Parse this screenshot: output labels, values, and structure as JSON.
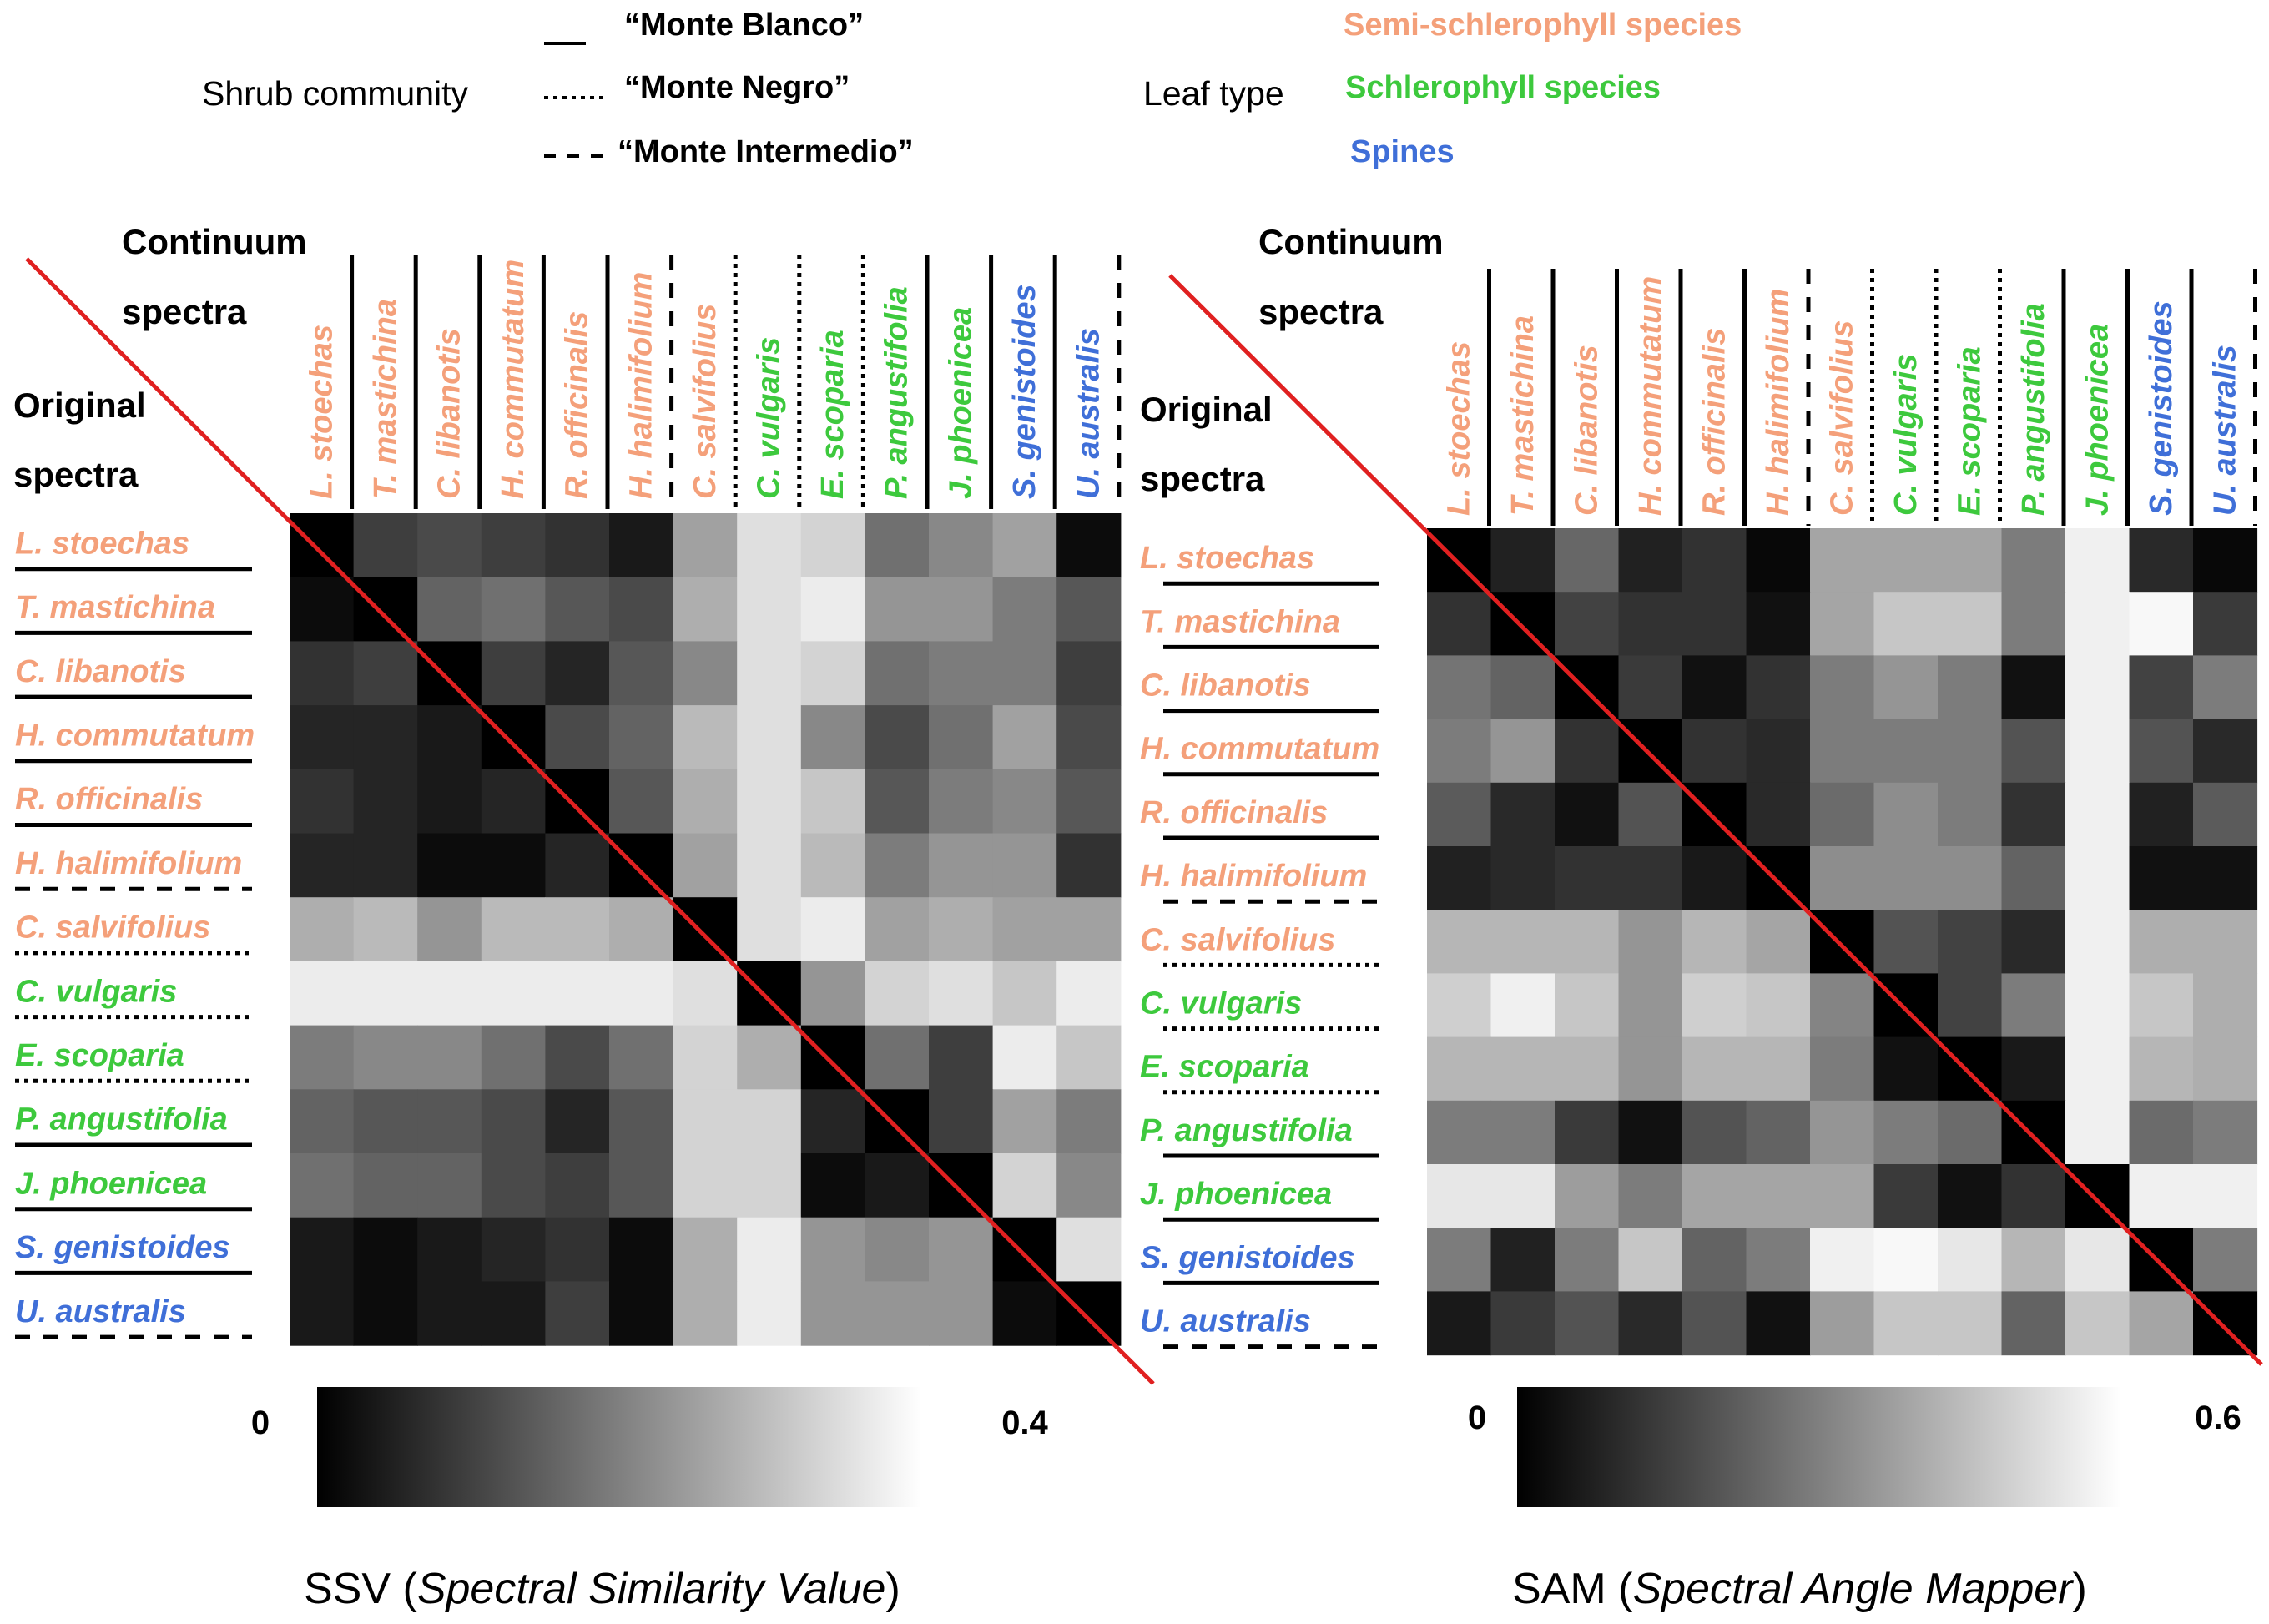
{
  "legend": {
    "community_title": "Shrub community",
    "communities": [
      {
        "label": "“Monte Blanco”",
        "line": "solid"
      },
      {
        "label": "“Monte Negro”",
        "line": "dotted"
      },
      {
        "label": "“Monte Intermedio”",
        "line": "dashed"
      }
    ],
    "leaf_title": "Leaf type",
    "leaf_types": [
      {
        "label": "Semi-schlerophyll species",
        "color": "#F4A07A"
      },
      {
        "label": "Schlerophyll species",
        "color": "#3DC93D"
      },
      {
        "label": "Spines",
        "color": "#3F6FD8"
      }
    ]
  },
  "species": [
    {
      "name": "L. stoechas",
      "type": 0,
      "community": "solid"
    },
    {
      "name": "T. mastichina",
      "type": 0,
      "community": "solid"
    },
    {
      "name": "C. libanotis",
      "type": 0,
      "community": "solid"
    },
    {
      "name": "H. commutatum",
      "type": 0,
      "community": "solid"
    },
    {
      "name": "R. officinalis",
      "type": 0,
      "community": "solid"
    },
    {
      "name": "H. halimifolium",
      "type": 0,
      "community": "dashed"
    },
    {
      "name": "C. salvifolius",
      "type": 0,
      "community": "dotted"
    },
    {
      "name": "C. vulgaris",
      "type": 1,
      "community": "dotted"
    },
    {
      "name": "E. scoparia",
      "type": 1,
      "community": "dotted"
    },
    {
      "name": "P. angustifolia",
      "type": 1,
      "community": "solid"
    },
    {
      "name": "J. phoenicea",
      "type": 1,
      "community": "solid"
    },
    {
      "name": "S. genistoides",
      "type": 2,
      "community": "solid"
    },
    {
      "name": "U. australis",
      "type": 2,
      "community": "dashed"
    }
  ],
  "chart_data": [
    {
      "type": "heatmap",
      "title": "SSV (Spectral Similarity Value)",
      "title_parts": [
        "SSV (",
        "Spectral Similarity Value",
        ")"
      ],
      "column_header": [
        "Continuum",
        "spectra"
      ],
      "row_header": [
        "Original",
        "spectra"
      ],
      "colorbar": {
        "min": 0,
        "max": 0.4,
        "min_label": "0",
        "max_label": "0.4"
      },
      "values": [
        [
          0.0,
          0.1,
          0.12,
          0.1,
          0.08,
          0.04,
          0.26,
          0.36,
          0.34,
          0.18,
          0.22,
          0.26,
          0.02
        ],
        [
          0.02,
          0.0,
          0.16,
          0.18,
          0.14,
          0.12,
          0.28,
          0.36,
          0.38,
          0.24,
          0.24,
          0.2,
          0.14
        ],
        [
          0.08,
          0.1,
          0.0,
          0.1,
          0.06,
          0.14,
          0.22,
          0.36,
          0.34,
          0.18,
          0.2,
          0.2,
          0.1
        ],
        [
          0.06,
          0.06,
          0.04,
          0.0,
          0.12,
          0.16,
          0.3,
          0.36,
          0.22,
          0.12,
          0.18,
          0.26,
          0.12
        ],
        [
          0.08,
          0.06,
          0.04,
          0.06,
          0.0,
          0.14,
          0.28,
          0.36,
          0.32,
          0.14,
          0.2,
          0.22,
          0.14
        ],
        [
          0.06,
          0.06,
          0.02,
          0.02,
          0.06,
          0.0,
          0.26,
          0.36,
          0.3,
          0.2,
          0.24,
          0.24,
          0.08
        ],
        [
          0.28,
          0.3,
          0.24,
          0.3,
          0.3,
          0.28,
          0.0,
          0.36,
          0.38,
          0.26,
          0.28,
          0.26,
          0.26
        ],
        [
          0.38,
          0.38,
          0.38,
          0.38,
          0.38,
          0.38,
          0.36,
          0.0,
          0.24,
          0.34,
          0.36,
          0.32,
          0.38
        ],
        [
          0.2,
          0.22,
          0.22,
          0.18,
          0.12,
          0.18,
          0.34,
          0.28,
          0.0,
          0.18,
          0.1,
          0.38,
          0.32
        ],
        [
          0.16,
          0.14,
          0.14,
          0.12,
          0.06,
          0.14,
          0.34,
          0.34,
          0.06,
          0.0,
          0.1,
          0.26,
          0.2
        ],
        [
          0.18,
          0.16,
          0.16,
          0.12,
          0.1,
          0.14,
          0.34,
          0.34,
          0.02,
          0.04,
          0.0,
          0.34,
          0.22
        ],
        [
          0.04,
          0.02,
          0.04,
          0.06,
          0.08,
          0.02,
          0.28,
          0.38,
          0.24,
          0.22,
          0.24,
          0.0,
          0.36
        ],
        [
          0.04,
          0.02,
          0.04,
          0.04,
          0.1,
          0.02,
          0.28,
          0.38,
          0.24,
          0.24,
          0.24,
          0.02,
          0.0
        ]
      ]
    },
    {
      "type": "heatmap",
      "title": "SAM (Spectral Angle Mapper)",
      "title_parts": [
        "SAM (",
        "Spectral Angle Mapper",
        ")"
      ],
      "column_header": [
        "Continuum",
        "spectra"
      ],
      "row_header": [
        "Original",
        "spectra"
      ],
      "colorbar": {
        "min": 0,
        "max": 0.6,
        "min_label": "0",
        "max_label": "0.6"
      },
      "values": [
        [
          0.0,
          0.08,
          0.25,
          0.08,
          0.12,
          0.02,
          0.4,
          0.4,
          0.4,
          0.3,
          0.58,
          0.1,
          0.02
        ],
        [
          0.12,
          0.0,
          0.16,
          0.12,
          0.12,
          0.04,
          0.4,
          0.48,
          0.48,
          0.3,
          0.58,
          0.6,
          0.14
        ],
        [
          0.28,
          0.24,
          0.0,
          0.14,
          0.04,
          0.12,
          0.3,
          0.36,
          0.3,
          0.04,
          0.58,
          0.16,
          0.3
        ],
        [
          0.3,
          0.36,
          0.12,
          0.0,
          0.12,
          0.1,
          0.3,
          0.3,
          0.3,
          0.2,
          0.58,
          0.2,
          0.1
        ],
        [
          0.22,
          0.1,
          0.04,
          0.2,
          0.0,
          0.1,
          0.26,
          0.34,
          0.3,
          0.12,
          0.58,
          0.08,
          0.22
        ],
        [
          0.08,
          0.1,
          0.12,
          0.12,
          0.06,
          0.0,
          0.34,
          0.34,
          0.34,
          0.24,
          0.58,
          0.04,
          0.04
        ],
        [
          0.44,
          0.44,
          0.44,
          0.36,
          0.44,
          0.4,
          0.0,
          0.2,
          0.16,
          0.1,
          0.58,
          0.42,
          0.42
        ],
        [
          0.5,
          0.58,
          0.48,
          0.36,
          0.5,
          0.48,
          0.32,
          0.0,
          0.16,
          0.3,
          0.58,
          0.48,
          0.42
        ],
        [
          0.44,
          0.44,
          0.44,
          0.36,
          0.44,
          0.44,
          0.3,
          0.04,
          0.0,
          0.06,
          0.58,
          0.44,
          0.42
        ],
        [
          0.3,
          0.3,
          0.14,
          0.04,
          0.2,
          0.24,
          0.36,
          0.3,
          0.26,
          0.0,
          0.58,
          0.26,
          0.3
        ],
        [
          0.56,
          0.56,
          0.38,
          0.3,
          0.4,
          0.4,
          0.4,
          0.14,
          0.04,
          0.12,
          0.0,
          0.58,
          0.58
        ],
        [
          0.3,
          0.08,
          0.3,
          0.48,
          0.24,
          0.3,
          0.58,
          0.6,
          0.56,
          0.44,
          0.56,
          0.0,
          0.3
        ],
        [
          0.06,
          0.14,
          0.2,
          0.1,
          0.2,
          0.04,
          0.38,
          0.48,
          0.48,
          0.24,
          0.48,
          0.4,
          0.0
        ]
      ]
    }
  ]
}
